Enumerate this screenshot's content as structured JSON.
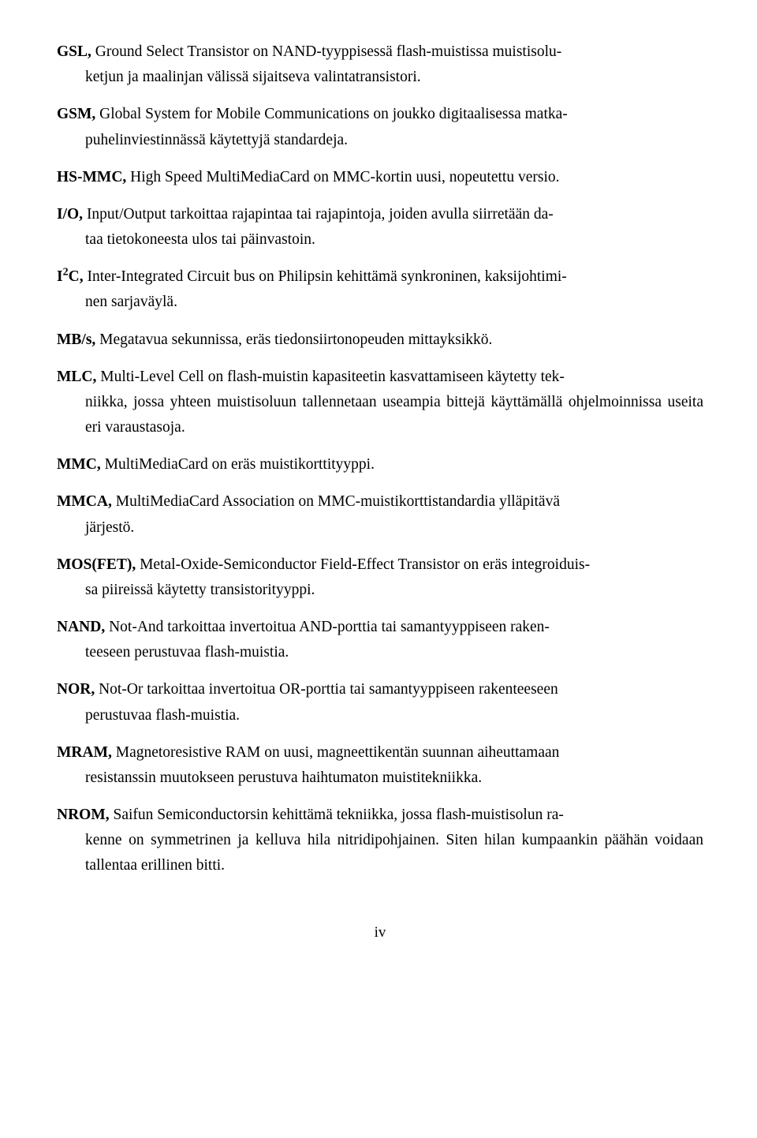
{
  "entries": [
    {
      "term": "GSL,",
      "first": " Ground Select Transistor on NAND-tyyppisessä flash-muistissa muistisolu-",
      "cont": "ketjun ja maalinjan välissä sijaitseva valintatransistori."
    },
    {
      "term": "GSM,",
      "first": " Global System for Mobile Communications on joukko digitaalisessa matka-",
      "cont": "puhelinviestinnässä käytettyjä standardeja."
    },
    {
      "term": "HS-MMC,",
      "first": " High Speed MultiMediaCard on MMC-kortin uusi, nopeutettu versio.",
      "cont": ""
    },
    {
      "term": "I/O,",
      "first": " Input/Output tarkoittaa rajapintaa tai rajapintoja, joiden avulla siirretään da-",
      "cont": "taa tietokoneesta ulos tai päinvastoin."
    },
    {
      "term": "I",
      "sup": "2",
      "termAfterSup": "C,",
      "first": " Inter-Integrated Circuit bus on Philipsin kehittämä synkroninen, kaksijohtimi-",
      "cont": "nen sarjaväylä."
    },
    {
      "term": "MB/s,",
      "first": " Megatavua sekunnissa, eräs tiedonsiirtonopeuden mittayksikkö.",
      "cont": ""
    },
    {
      "term": "MLC,",
      "first": " Multi-Level Cell on flash-muistin kapasiteetin kasvattamiseen käytetty tek-",
      "cont": "niikka, jossa yhteen muistisoluun tallennetaan useampia bittejä käyttämällä ohjelmoinnissa useita eri varaustasoja."
    },
    {
      "term": "MMC,",
      "first": " MultiMediaCard on eräs muistikorttityyppi.",
      "cont": ""
    },
    {
      "term": "MMCA,",
      "first": " MultiMediaCard Association on MMC-muistikorttistandardia ylläpitävä",
      "cont": "järjestö."
    },
    {
      "term": "MOS(FET),",
      "first": " Metal-Oxide-Semiconductor Field-Effect Transistor on eräs integroiduis-",
      "cont": "sa piireissä käytetty transistorityyppi."
    },
    {
      "term": "NAND,",
      "first": " Not-And tarkoittaa invertoitua AND-porttia tai samantyyppiseen raken-",
      "cont": "teeseen perustuvaa flash-muistia."
    },
    {
      "term": "NOR,",
      "first": " Not-Or tarkoittaa invertoitua OR-porttia tai samantyyppiseen rakenteeseen",
      "cont": "perustuvaa flash-muistia."
    },
    {
      "term": "MRAM,",
      "first": " Magnetoresistive RAM on uusi, magneettikentän suunnan aiheuttamaan",
      "cont": "resistanssin muutokseen perustuva haihtumaton muistitekniikka."
    },
    {
      "term": "NROM,",
      "first": " Saifun Semiconductorsin kehittämä tekniikka, jossa flash-muistisolun ra-",
      "cont": "kenne on symmetrinen ja kelluva hila nitridipohjainen. Siten hilan kumpaankin päähän voidaan tallentaa erillinen bitti."
    }
  ],
  "pageNumber": "iv"
}
